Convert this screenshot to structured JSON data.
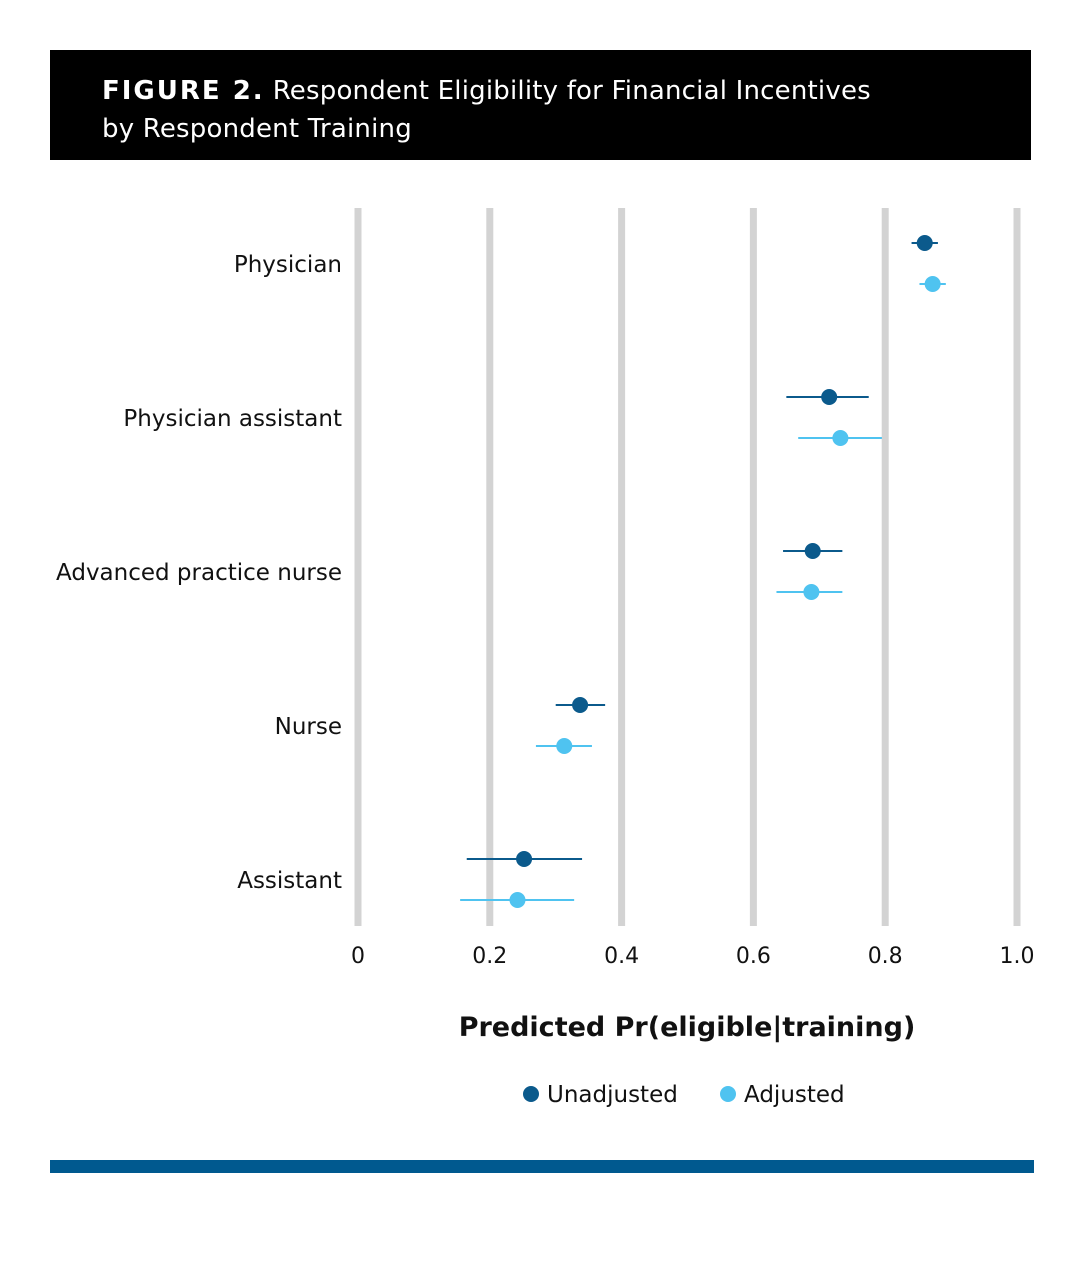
{
  "figure": {
    "label": "FIGURE 2.",
    "title_line1": "Respondent Eligibility for Financial Incentives",
    "title_line2": "by Respondent Training"
  },
  "colors": {
    "unadjusted": "#0b5a8c",
    "adjusted": "#4fc3f0",
    "grid": "#d3d3d3",
    "header_bg": "#000000",
    "bottom_bar": "#00598f"
  },
  "chart_data": {
    "type": "scatter",
    "subtype": "dot-and-whisker",
    "xlabel": "Predicted Pr(eligible|training)",
    "xlim": [
      0,
      1.0
    ],
    "xticks": [
      0,
      0.2,
      0.4,
      0.6,
      0.8,
      1.0
    ],
    "xtick_labels": [
      "0",
      "0.2",
      "0.4",
      "0.6",
      "0.8",
      "1.0"
    ],
    "grid": "vertical",
    "legend": "bottom",
    "categories": [
      "Physician",
      "Physician assistant",
      "Advanced practice nurse",
      "Nurse",
      "Assistant"
    ],
    "series": [
      {
        "name": "Unadjusted",
        "color": "#0b5a8c",
        "values": [
          0.86,
          0.715,
          0.69,
          0.337,
          0.252
        ],
        "ci_low": [
          0.84,
          0.65,
          0.645,
          0.3,
          0.165
        ],
        "ci_high": [
          0.88,
          0.775,
          0.735,
          0.375,
          0.34
        ]
      },
      {
        "name": "Adjusted",
        "color": "#4fc3f0",
        "values": [
          0.872,
          0.732,
          0.688,
          0.313,
          0.242
        ],
        "ci_low": [
          0.852,
          0.668,
          0.635,
          0.27,
          0.155
        ],
        "ci_high": [
          0.892,
          0.795,
          0.735,
          0.355,
          0.328
        ]
      }
    ]
  }
}
